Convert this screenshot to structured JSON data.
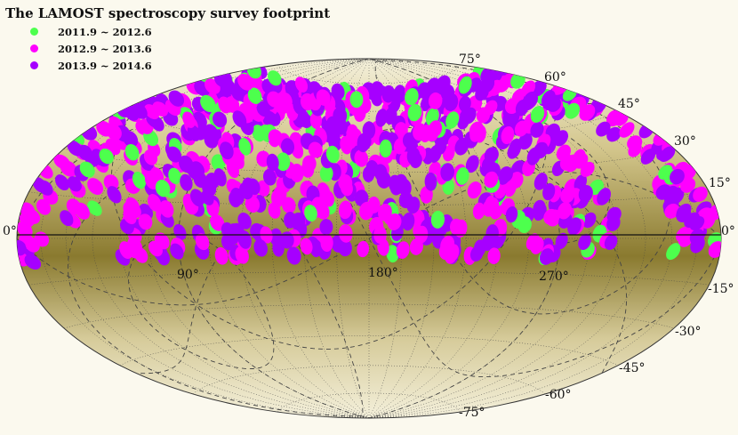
{
  "title": "The LAMOST spectroscopy survey footprint",
  "legend": [
    {
      "label": "2011.9 ~ 2012.6",
      "color": "#4dff4d"
    },
    {
      "label": "2012.9 ~ 2013.6",
      "color": "#ff00ff"
    },
    {
      "label": "2013.9 ~ 2014.6",
      "color": "#a600ff"
    }
  ],
  "colors": {
    "background": "#fbf9ee",
    "map_light": "#f3efd9",
    "map_dark": "#8a7a2f",
    "grid": "#444444",
    "equator": "#111111"
  },
  "projection": "aitoff-hammer",
  "lat_labels": {
    "p75": "75°",
    "p60": "60°",
    "p45": "45°",
    "p30": "30°",
    "p15": "15°",
    "zero_left": "0°",
    "zero_right": "0°",
    "m15": "-15°",
    "m30": "-30°",
    "m45": "-45°",
    "m60": "-60°",
    "m75": "-75°"
  },
  "lon_labels": {
    "l90": "90°",
    "l180": "180°",
    "l270": "270°"
  }
}
